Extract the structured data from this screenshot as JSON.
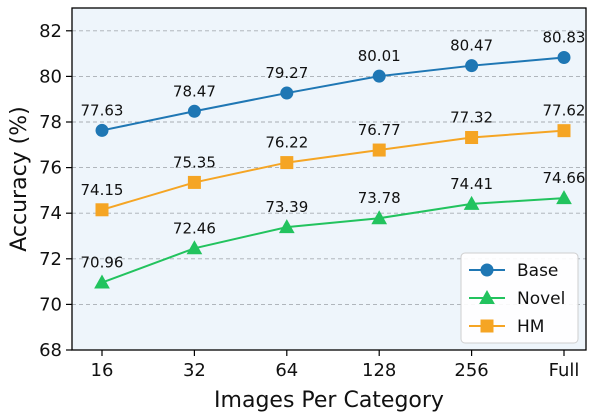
{
  "chart_data": {
    "type": "line",
    "title": "",
    "xlabel": "Images Per Category",
    "ylabel": "Accuracy (%)",
    "categories": [
      "16",
      "32",
      "64",
      "128",
      "256",
      "Full"
    ],
    "yticks": [
      68,
      70,
      72,
      74,
      76,
      78,
      80,
      82
    ],
    "ylim": [
      68,
      83
    ],
    "grid": "horizontal dashed",
    "legend_position": "bottom-right",
    "background_color": "#eef5fb",
    "series": [
      {
        "name": "Base",
        "color": "#1f77b4",
        "marker": "circle",
        "values": [
          77.63,
          78.47,
          79.27,
          80.01,
          80.47,
          80.83
        ],
        "labels": [
          "77.63",
          "78.47",
          "79.27",
          "80.01",
          "80.47",
          "80.83"
        ]
      },
      {
        "name": "Novel",
        "color": "#22c35e",
        "marker": "triangle",
        "values": [
          70.96,
          72.46,
          73.39,
          73.78,
          74.41,
          74.66
        ],
        "labels": [
          "70.96",
          "72.46",
          "73.39",
          "73.78",
          "74.41",
          "74.66"
        ]
      },
      {
        "name": "HM",
        "color": "#f5a524",
        "marker": "square",
        "values": [
          74.15,
          75.35,
          76.22,
          76.77,
          77.32,
          77.62
        ],
        "labels": [
          "74.15",
          "75.35",
          "76.22",
          "76.77",
          "77.32",
          "77.62"
        ]
      }
    ]
  }
}
